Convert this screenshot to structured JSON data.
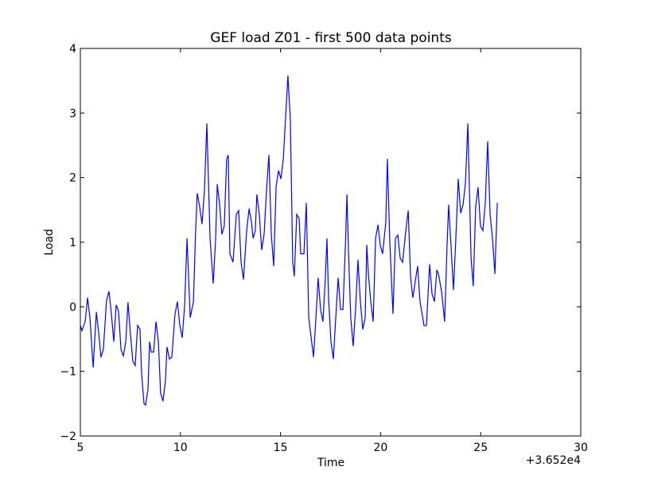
{
  "chart_data": {
    "type": "line",
    "title": "GEF load Z01 - first 500 data points",
    "xlabel": "Time",
    "ylabel": "Load",
    "x_offset_label": "+3.652e4",
    "xlim": [
      5,
      30
    ],
    "xticks": [
      5,
      10,
      15,
      20,
      25,
      30
    ],
    "ylim": [
      -2,
      4
    ],
    "yticks": [
      {
        "value": -2,
        "label": "−2"
      },
      {
        "value": -1,
        "label": "−1"
      },
      0,
      1,
      2,
      3,
      4
    ],
    "grid": false,
    "series": [
      {
        "name": "load",
        "color": "#0000ff",
        "x": [
          5.0,
          5.08,
          5.24,
          5.36,
          5.48,
          5.64,
          5.8,
          5.92,
          6.03,
          6.15,
          6.31,
          6.43,
          6.55,
          6.67,
          6.79,
          6.91,
          7.03,
          7.15,
          7.27,
          7.38,
          7.5,
          7.62,
          7.74,
          7.86,
          7.98,
          8.06,
          8.18,
          8.26,
          8.38,
          8.46,
          8.54,
          8.66,
          8.78,
          8.9,
          9.01,
          9.13,
          9.25,
          9.33,
          9.45,
          9.57,
          9.73,
          9.85,
          9.97,
          10.09,
          10.21,
          10.33,
          10.49,
          10.65,
          10.76,
          10.84,
          10.96,
          11.08,
          11.2,
          11.32,
          11.48,
          11.64,
          11.76,
          11.84,
          11.96,
          12.07,
          12.19,
          12.31,
          12.39,
          12.47,
          12.63,
          12.79,
          12.91,
          13.03,
          13.15,
          13.31,
          13.43,
          13.55,
          13.63,
          13.74,
          13.82,
          13.94,
          14.06,
          14.18,
          14.3,
          14.42,
          14.54,
          14.66,
          14.78,
          14.9,
          15.02,
          15.14,
          15.37,
          15.49,
          15.61,
          15.69,
          15.81,
          15.93,
          16.01,
          16.17,
          16.29,
          16.41,
          16.65,
          16.77,
          16.88,
          17.0,
          17.12,
          17.24,
          17.32,
          17.4,
          17.52,
          17.64,
          17.76,
          17.88,
          18.0,
          18.12,
          18.24,
          18.32,
          18.4,
          18.51,
          18.63,
          18.75,
          18.87,
          18.99,
          19.11,
          19.23,
          19.31,
          19.39,
          19.51,
          19.63,
          19.75,
          19.87,
          19.99,
          20.1,
          20.26,
          20.34,
          20.46,
          20.62,
          20.74,
          20.86,
          20.98,
          21.1,
          21.26,
          21.38,
          21.5,
          21.61,
          21.73,
          21.85,
          21.97,
          22.17,
          22.29,
          22.45,
          22.57,
          22.69,
          22.81,
          22.89,
          23.05,
          23.2,
          23.32,
          23.4,
          23.52,
          23.64,
          23.76,
          23.88,
          24.0,
          24.12,
          24.24,
          24.36,
          24.52,
          24.63,
          24.75,
          24.87,
          24.99,
          25.11,
          25.23,
          25.35,
          25.47,
          25.59,
          25.71,
          25.83
        ],
        "values": [
          -0.29,
          -0.37,
          -0.23,
          0.14,
          -0.17,
          -0.94,
          -0.08,
          -0.41,
          -0.78,
          -0.66,
          0.1,
          0.24,
          -0.11,
          -0.54,
          0.03,
          -0.07,
          -0.66,
          -0.76,
          -0.54,
          0.07,
          -0.41,
          -0.84,
          -0.91,
          -0.29,
          -0.35,
          -1.03,
          -1.5,
          -1.52,
          -1.28,
          -0.54,
          -0.7,
          -0.7,
          -0.23,
          -0.54,
          -1.34,
          -1.46,
          -1.15,
          -0.62,
          -0.81,
          -0.78,
          -0.11,
          0.08,
          -0.29,
          -0.48,
          0.02,
          1.06,
          -0.17,
          0.08,
          1.18,
          1.76,
          1.55,
          1.28,
          1.8,
          2.84,
          1.06,
          0.36,
          1.06,
          1.9,
          1.58,
          1.12,
          1.25,
          2.29,
          2.35,
          0.82,
          0.69,
          1.43,
          1.49,
          0.69,
          0.42,
          1.18,
          1.52,
          1.31,
          1.06,
          1.18,
          1.74,
          1.43,
          0.88,
          1.12,
          1.8,
          2.35,
          1.12,
          0.63,
          1.86,
          2.11,
          1.98,
          2.29,
          3.58,
          2.91,
          0.69,
          0.47,
          1.43,
          1.37,
          0.82,
          0.82,
          1.61,
          -0.17,
          -0.78,
          -0.17,
          0.45,
          -0.04,
          -0.23,
          0.45,
          1.06,
          0.14,
          -0.54,
          -0.81,
          -0.17,
          0.45,
          -0.04,
          -0.04,
          0.94,
          1.74,
          0.82,
          -0.17,
          -0.61,
          -0.04,
          0.73,
          0.08,
          -0.35,
          -0.17,
          0.96,
          0.51,
          0.08,
          -0.23,
          1.06,
          1.27,
          0.94,
          0.82,
          1.31,
          2.29,
          1.0,
          -0.11,
          1.06,
          1.11,
          0.75,
          0.69,
          1.18,
          1.49,
          0.45,
          0.14,
          0.39,
          0.63,
          0.08,
          -0.29,
          -0.29,
          0.66,
          0.2,
          0.08,
          0.57,
          0.51,
          0.23,
          -0.23,
          0.94,
          1.58,
          0.94,
          0.26,
          1.06,
          1.98,
          1.45,
          1.58,
          1.92,
          2.84,
          0.75,
          0.32,
          1.55,
          1.85,
          1.25,
          1.18,
          1.61,
          2.56,
          1.43,
          1.06,
          0.51,
          1.61
        ]
      }
    ]
  }
}
